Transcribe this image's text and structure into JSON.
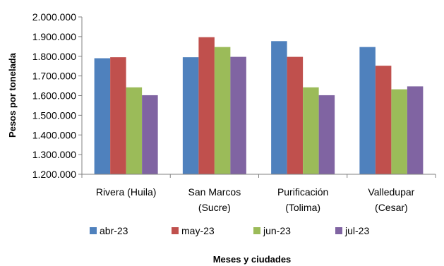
{
  "chart_data": {
    "type": "bar",
    "categories": [
      [
        "Rivera (Huila)"
      ],
      [
        "San Marcos",
        "(Sucre)"
      ],
      [
        "Purificación",
        "(Tolima)"
      ],
      [
        "Valledupar",
        "(Cesar)"
      ]
    ],
    "series": [
      {
        "name": "abr-23",
        "color": "#4F81BD",
        "values": [
          1790000,
          1795000,
          1877000,
          1847000
        ]
      },
      {
        "name": "may-23",
        "color": "#C0504D",
        "values": [
          1795000,
          1897000,
          1797000,
          1752000
        ]
      },
      {
        "name": "jun-23",
        "color": "#9BBB59",
        "values": [
          1642000,
          1847000,
          1642000,
          1632000
        ]
      },
      {
        "name": "jul-23",
        "color": "#8064A2",
        "values": [
          1602000,
          1797000,
          1602000,
          1647000
        ]
      }
    ],
    "ylim": [
      1200000,
      2000000
    ],
    "ytick_step": 100000,
    "ytick_labels": [
      "1.200.000",
      "1.300.000",
      "1.400.000",
      "1.500.000",
      "1.600.000",
      "1.700.000",
      "1.800.000",
      "1.900.000",
      "2.000.000"
    ],
    "xlabel": "Meses y ciudades",
    "ylabel": "Pesos por tonelada",
    "legend_position": "bottom",
    "grid": false
  }
}
